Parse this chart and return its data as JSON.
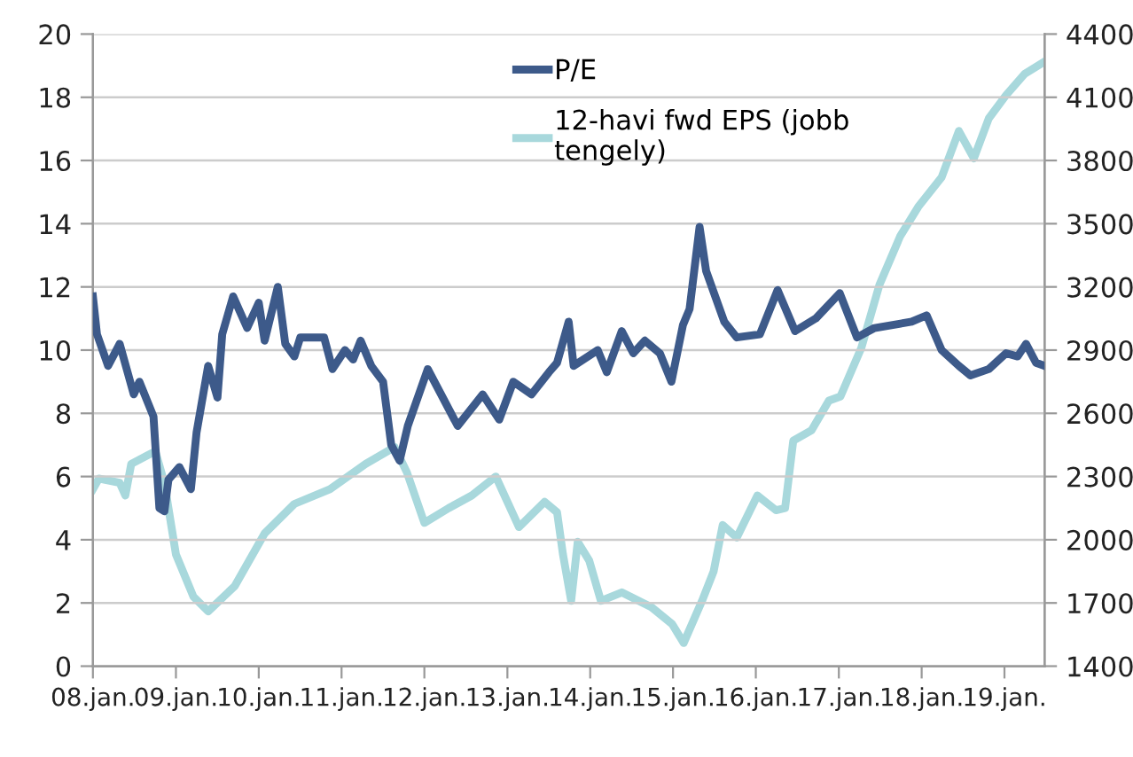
{
  "chart_data": {
    "type": "line",
    "xlim": [
      "2008-01-01",
      "2019-06-27"
    ],
    "xticks": [
      {
        "value": "2008-01-01",
        "label": "08.jan."
      },
      {
        "value": "2009-01-01",
        "label": "09.jan."
      },
      {
        "value": "2010-01-01",
        "label": "10.jan."
      },
      {
        "value": "2011-01-01",
        "label": "11.jan."
      },
      {
        "value": "2012-01-01",
        "label": "12.jan."
      },
      {
        "value": "2013-01-01",
        "label": "13.jan."
      },
      {
        "value": "2014-01-01",
        "label": "14.jan."
      },
      {
        "value": "2015-01-01",
        "label": "15.jan."
      },
      {
        "value": "2016-01-01",
        "label": "16.jan."
      },
      {
        "value": "2017-01-01",
        "label": "17.jan."
      },
      {
        "value": "2018-01-01",
        "label": "18.jan."
      },
      {
        "value": "2019-01-01",
        "label": "19.jan."
      }
    ],
    "ylim": [
      0,
      20
    ],
    "yticks": [
      0,
      2,
      4,
      6,
      8,
      10,
      12,
      14,
      16,
      18,
      20
    ],
    "y2lim": [
      1400,
      4400
    ],
    "y2ticks": [
      1400,
      1700,
      2000,
      2300,
      2600,
      2900,
      3200,
      3500,
      3800,
      4100,
      4400
    ],
    "grid": "y",
    "legend": "top",
    "marker": "none",
    "line_style": "solid",
    "series": [
      {
        "name": "P/E",
        "color": "#3d5a8a",
        "x": [
          "2008-01-01",
          "2008-01-19",
          "2008-03-08",
          "2008-04-28",
          "2008-06-29",
          "2008-07-24",
          "2008-09-24",
          "2008-10-20",
          "2008-11-11",
          "2008-11-29",
          "2009-01-16",
          "2009-03-08",
          "2009-04-02",
          "2009-05-23",
          "2009-07-03",
          "2009-07-24",
          "2009-09-10",
          "2009-11-11",
          "2010-01-01",
          "2010-01-27",
          "2010-03-26",
          "2010-04-28",
          "2010-06-07",
          "2010-07-03",
          "2010-10-16",
          "2010-11-22",
          "2011-01-16",
          "2011-02-21",
          "2011-03-26",
          "2011-05-12",
          "2011-07-03",
          "2011-08-08",
          "2011-09-14",
          "2011-10-20",
          "2012-01-16",
          "2012-05-27",
          "2012-09-14",
          "2012-11-26",
          "2013-01-27",
          "2013-04-17",
          "2013-07-03",
          "2013-08-08",
          "2013-09-28",
          "2013-10-20",
          "2014-02-03",
          "2014-03-15",
          "2014-05-20",
          "2014-07-10",
          "2014-08-30",
          "2014-11-04",
          "2014-12-25",
          "2015-02-14",
          "2015-03-15",
          "2015-04-28",
          "2015-05-27",
          "2015-08-15",
          "2015-10-09",
          "2016-01-19",
          "2016-04-06",
          "2016-06-22",
          "2016-09-21",
          "2017-01-05",
          "2017-03-22",
          "2017-06-07",
          "2017-11-18",
          "2018-01-23",
          "2018-03-30",
          "2018-06-14",
          "2018-08-04",
          "2018-10-24",
          "2019-01-08",
          "2019-02-28",
          "2019-04-06",
          "2019-05-20",
          "2019-06-27"
        ],
        "values": [
          11.7,
          10.5,
          9.5,
          10.2,
          8.6,
          9.0,
          7.9,
          5.0,
          4.9,
          5.9,
          6.3,
          5.6,
          7.4,
          9.5,
          8.5,
          10.5,
          11.7,
          10.7,
          11.5,
          10.3,
          12.0,
          10.2,
          9.8,
          10.4,
          10.4,
          9.4,
          10.0,
          9.7,
          10.3,
          9.5,
          9.0,
          7.0,
          6.5,
          7.6,
          9.4,
          7.6,
          8.6,
          7.8,
          9.0,
          8.6,
          9.3,
          9.6,
          10.9,
          9.5,
          10.0,
          9.3,
          10.6,
          9.9,
          10.3,
          9.9,
          9.0,
          10.8,
          11.3,
          13.9,
          12.5,
          10.9,
          10.4,
          10.5,
          11.9,
          10.6,
          11.0,
          11.8,
          10.4,
          10.7,
          10.9,
          11.1,
          10.0,
          9.5,
          9.2,
          9.4,
          9.9,
          9.8,
          10.2,
          9.6,
          9.5
        ]
      },
      {
        "name": "12-havi fwd EPS (jobb\ntengely)",
        "color": "#a8d8dc",
        "axis": "y2",
        "x": [
          "2008-01-01",
          "2008-01-27",
          "2008-04-28",
          "2008-05-23",
          "2008-06-18",
          "2008-10-02",
          "2008-11-11",
          "2009-01-01",
          "2009-03-19",
          "2009-05-23",
          "2009-09-17",
          "2010-01-27",
          "2010-06-07",
          "2010-11-11",
          "2011-04-17",
          "2011-08-23",
          "2011-10-16",
          "2012-01-01",
          "2012-04-17",
          "2012-07-28",
          "2012-11-11",
          "2013-02-21",
          "2013-06-14",
          "2013-08-08",
          "2013-09-03",
          "2013-10-09",
          "2013-11-07",
          "2013-12-28",
          "2014-02-17",
          "2014-05-20",
          "2014-09-28",
          "2014-12-28",
          "2015-02-17",
          "2015-05-09",
          "2015-06-29",
          "2015-08-08",
          "2015-10-09",
          "2016-01-08",
          "2016-03-30",
          "2016-05-09",
          "2016-06-14",
          "2016-09-03",
          "2016-11-18",
          "2017-01-08",
          "2017-04-10",
          "2017-06-29",
          "2017-09-28",
          "2017-12-17",
          "2018-03-30",
          "2018-06-14",
          "2018-08-19",
          "2018-10-24",
          "2019-01-08",
          "2019-03-30",
          "2019-06-27"
        ],
        "values": [
          2240,
          2290,
          2270,
          2210,
          2360,
          2420,
          2270,
          1930,
          1730,
          1660,
          1780,
          2030,
          2170,
          2240,
          2360,
          2440,
          2320,
          2080,
          2150,
          2210,
          2300,
          2060,
          2180,
          2130,
          1930,
          1710,
          1990,
          1900,
          1710,
          1750,
          1680,
          1600,
          1510,
          1710,
          1850,
          2070,
          2010,
          2210,
          2140,
          2150,
          2470,
          2520,
          2660,
          2680,
          2910,
          3210,
          3440,
          3580,
          3720,
          3940,
          3810,
          4000,
          4110,
          4210,
          4270
        ]
      }
    ]
  }
}
